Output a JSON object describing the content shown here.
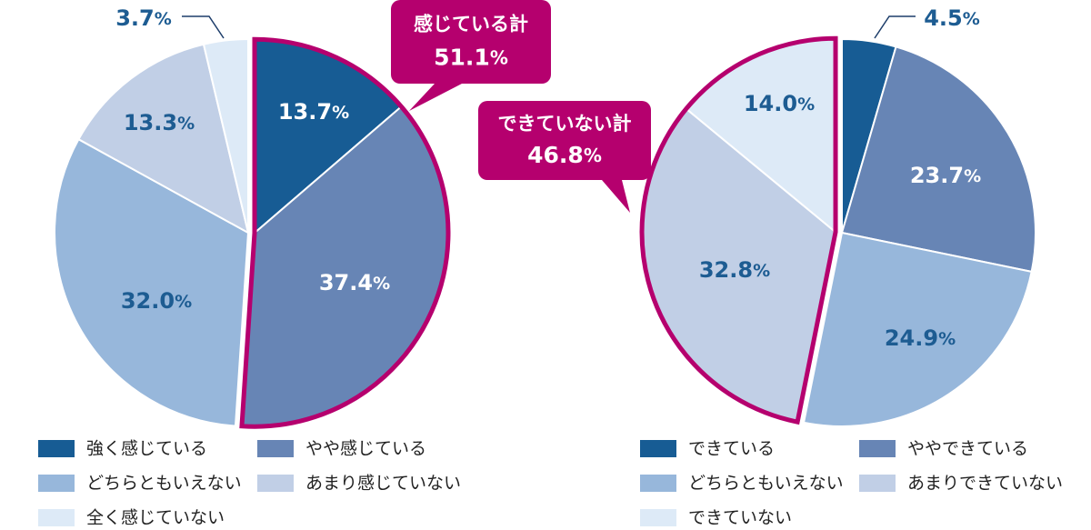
{
  "chart_data": [
    {
      "type": "pie",
      "categories": [
        "強く感じている",
        "やや感じている",
        "どちらともいえない",
        "あまり感じていない",
        "全く感じていない"
      ],
      "values": [
        13.7,
        37.4,
        32.0,
        13.3,
        3.7
      ],
      "labels": [
        "13.7",
        "37.4",
        "32.0",
        "13.3",
        "3.7"
      ],
      "unit": "%",
      "colors": [
        "#175c94",
        "#6785b5",
        "#97b7db",
        "#c1cfe6",
        "#ddeaf7"
      ],
      "highlight": {
        "label": "感じている計",
        "value": "51.1",
        "unit": "%",
        "slices": [
          0,
          1
        ]
      }
    },
    {
      "type": "pie",
      "categories": [
        "できている",
        "ややできている",
        "どちらともいえない",
        "あまりできていない",
        "できていない"
      ],
      "values": [
        4.5,
        23.7,
        24.9,
        32.8,
        14.0
      ],
      "labels": [
        "4.5",
        "23.7",
        "24.9",
        "32.8",
        "14.0"
      ],
      "unit": "%",
      "colors": [
        "#175c94",
        "#6785b5",
        "#97b7db",
        "#c1cfe6",
        "#ddeaf7"
      ],
      "highlight": {
        "label": "できていない計",
        "value": "46.8",
        "unit": "%",
        "slices": [
          3,
          4
        ]
      }
    }
  ],
  "style": {
    "highlight_color": "#b5006e",
    "label_dark": "#1d5c92",
    "label_light": "#ffffff",
    "border": "#ffffff"
  }
}
